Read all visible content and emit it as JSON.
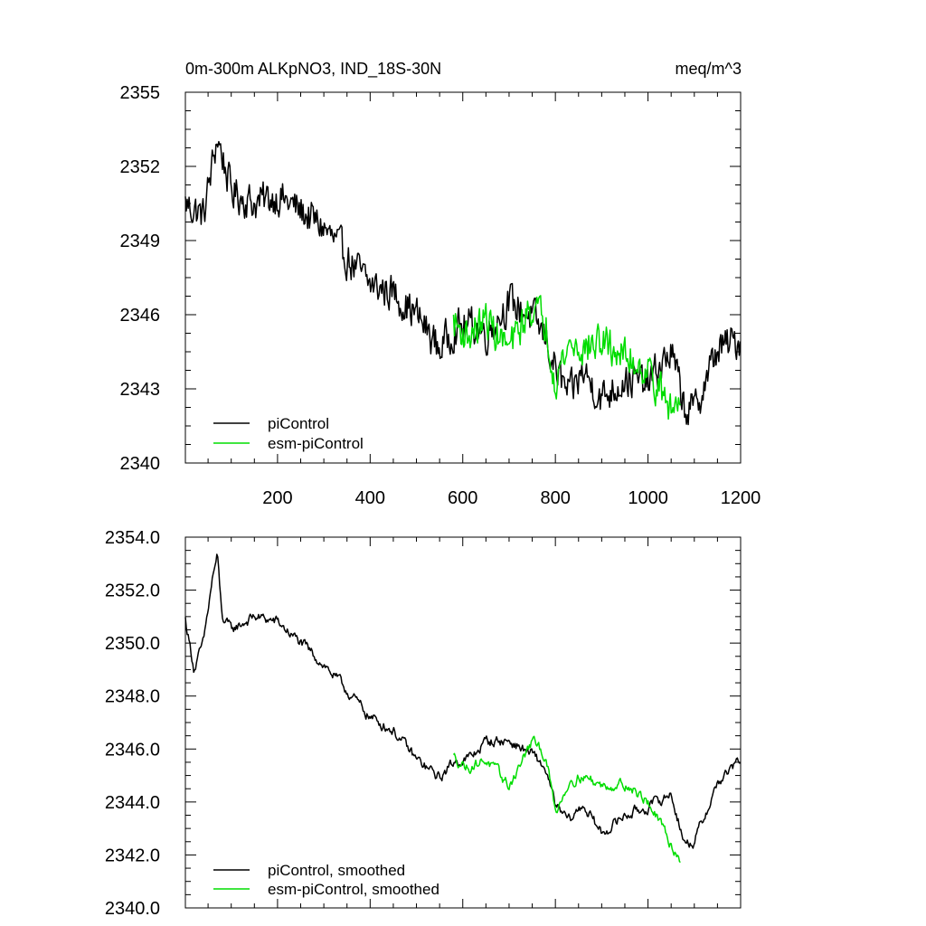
{
  "chart_data": [
    {
      "type": "line",
      "title": "0m-300m ALKpNO3, IND_18S-30N",
      "units": "meq/m^3",
      "xlim": [
        1,
        1200
      ],
      "ylim": [
        2340,
        2355
      ],
      "xticks": [
        200,
        400,
        600,
        800,
        1000,
        1200
      ],
      "xtick_labels": [
        "200",
        "400",
        "600",
        "800",
        "1000",
        "1200"
      ],
      "yticks": [
        2340,
        2343,
        2346,
        2349,
        2352,
        2355
      ],
      "ytick_labels": [
        "2340",
        "2343",
        "2346",
        "2349",
        "2352",
        "2355"
      ],
      "legend_position": "bottom-left",
      "series": [
        {
          "name": "piControl",
          "color": "#000000",
          "x": [
            1,
            40,
            70,
            100,
            150,
            200,
            250,
            300,
            350,
            400,
            450,
            500,
            550,
            580,
            620,
            650,
            700,
            750,
            780,
            800,
            830,
            860,
            900,
            950,
            1000,
            1050,
            1080,
            1100,
            1150,
            1200
          ],
          "y": [
            2350.5,
            2350.0,
            2353.2,
            2351.0,
            2350.5,
            2350.8,
            2350.2,
            2349.5,
            2348.3,
            2347.2,
            2346.9,
            2346.0,
            2344.6,
            2345.4,
            2345.6,
            2345.2,
            2346.5,
            2345.9,
            2345.0,
            2343.8,
            2342.7,
            2343.7,
            2342.6,
            2343.4,
            2343.2,
            2344.5,
            2342.2,
            2342.1,
            2344.6,
            2345.0
          ]
        },
        {
          "name": "esm-piControl",
          "color": "#00dd00",
          "x": [
            580,
            610,
            650,
            700,
            750,
            780,
            800,
            830,
            860,
            900,
            950,
            1000,
            1050,
            1070
          ],
          "y": [
            2345.7,
            2345.1,
            2345.8,
            2344.6,
            2346.4,
            2345.6,
            2343.4,
            2344.8,
            2344.6,
            2344.9,
            2344.3,
            2343.8,
            2342.1,
            2342.6
          ]
        }
      ]
    },
    {
      "type": "line",
      "xlim": [
        1,
        1200
      ],
      "ylim": [
        2340.0,
        2354.0
      ],
      "xticks": [
        200,
        400,
        600,
        800,
        1000,
        1200
      ],
      "yticks": [
        2340,
        2342,
        2344,
        2346,
        2348,
        2350,
        2352,
        2354
      ],
      "ytick_labels": [
        "2340.0",
        "2342.0",
        "2344.0",
        "2346.0",
        "2348.0",
        "2350.0",
        "2352.0",
        "2354.0"
      ],
      "legend_position": "bottom-left",
      "series": [
        {
          "name": "piControl, smoothed",
          "color": "#000000",
          "x": [
            1,
            20,
            40,
            60,
            70,
            80,
            100,
            150,
            200,
            250,
            300,
            350,
            400,
            450,
            500,
            550,
            580,
            620,
            650,
            700,
            750,
            780,
            800,
            830,
            860,
            900,
            950,
            1000,
            1050,
            1080,
            1100,
            1150,
            1200
          ],
          "y": [
            2350.9,
            2349.0,
            2350.0,
            2352.5,
            2353.3,
            2351.0,
            2350.5,
            2351.0,
            2350.8,
            2350.0,
            2349.2,
            2348.2,
            2347.2,
            2346.7,
            2345.6,
            2344.9,
            2345.5,
            2345.7,
            2346.3,
            2346.3,
            2345.8,
            2345.2,
            2343.8,
            2343.3,
            2343.9,
            2342.8,
            2343.5,
            2343.8,
            2344.3,
            2342.4,
            2342.5,
            2344.7,
            2345.6
          ]
        },
        {
          "name": "esm-piControl, smoothed",
          "color": "#00dd00",
          "x": [
            580,
            610,
            650,
            700,
            750,
            780,
            800,
            830,
            860,
            900,
            950,
            1000,
            1050,
            1070
          ],
          "y": [
            2345.7,
            2345.3,
            2345.6,
            2344.6,
            2346.3,
            2345.7,
            2343.6,
            2344.8,
            2345.0,
            2344.6,
            2344.7,
            2344.0,
            2342.4,
            2341.8
          ]
        }
      ]
    }
  ]
}
